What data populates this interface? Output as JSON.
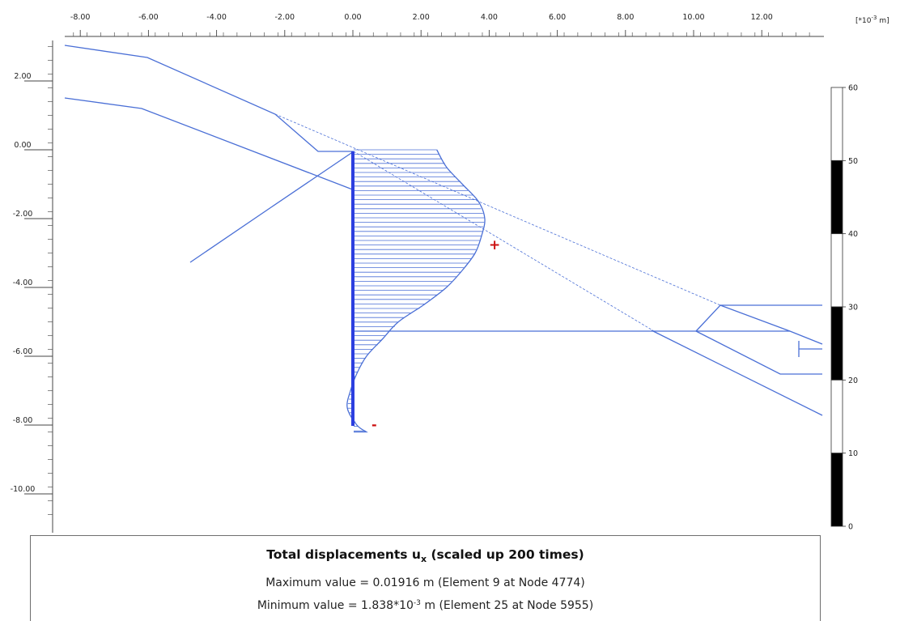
{
  "colors": {
    "structure": "#4a6fd6",
    "wall": "#2c3fe0",
    "marker_plus": "#cc1111",
    "marker_minus": "#cc1111",
    "legend_black": "#000000",
    "legend_white": "#ffffff"
  },
  "x_axis": {
    "ticks": [
      "-8.00",
      "-6.00",
      "-4.00",
      "-2.00",
      "0.00",
      "2.00",
      "4.00",
      "6.00",
      "8.00",
      "10.00",
      "12.00"
    ],
    "unit_prefix": "[*10",
    "unit_exp": "-3",
    "unit_suffix": " m]"
  },
  "y_axis": {
    "ticks": [
      "2.00",
      "0.00",
      "-2.00",
      "-4.00",
      "-6.00",
      "-8.00",
      "-10.00"
    ]
  },
  "legend": {
    "labels": [
      "60",
      "50",
      "40",
      "30",
      "20",
      "10",
      "0"
    ]
  },
  "markers": {
    "plus": "+",
    "minus": "-"
  },
  "caption": {
    "title_prefix": "Total displacements u",
    "title_sub": "x",
    "title_suffix": " (scaled up 200 times)",
    "max_line": "Maximum value = 0.01916 m (Element 9 at Node 4774)",
    "min_prefix": "Minimum value = 1.838*10",
    "min_exp": "-3",
    "min_suffix": " m (Element 25 at Node 5955)"
  },
  "chart_data": {
    "type": "line",
    "x_ticks": [
      -8,
      -6,
      -4,
      -2,
      0,
      2,
      4,
      6,
      8,
      10,
      12
    ],
    "x_unit": "*10^-3 m",
    "y_ticks": [
      2,
      0,
      -2,
      -4,
      -6,
      -8,
      -10
    ],
    "profile": {
      "depth": [
        0.0,
        -0.5,
        -1.0,
        -1.5,
        -2.0,
        -2.5,
        -3.0,
        -3.5,
        -4.0,
        -4.5,
        -5.0,
        -5.5,
        -6.0,
        -6.5,
        -7.0,
        -7.5,
        -8.0,
        -8.2
      ],
      "displacement": [
        2.6,
        2.9,
        3.4,
        3.9,
        4.1,
        4.0,
        3.8,
        3.4,
        2.9,
        2.2,
        1.4,
        0.9,
        0.4,
        0.1,
        -0.1,
        -0.2,
        0.1,
        0.4
      ]
    },
    "legend_scale": [
      0,
      10,
      20,
      30,
      40,
      50,
      60
    ]
  }
}
